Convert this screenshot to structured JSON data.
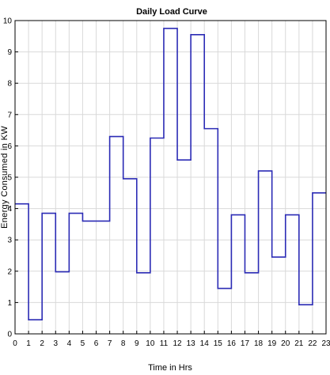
{
  "chart_data": {
    "type": "line",
    "step": "post",
    "title": "Daily Load Curve",
    "xlabel": "Time in Hrs",
    "ylabel": "Energy Consumed in KW",
    "xlim": [
      0,
      23
    ],
    "ylim": [
      0,
      10
    ],
    "xticks": [
      0,
      1,
      2,
      3,
      4,
      5,
      6,
      7,
      8,
      9,
      10,
      11,
      12,
      13,
      14,
      15,
      16,
      17,
      18,
      19,
      20,
      21,
      22,
      23
    ],
    "yticks": [
      0,
      1,
      2,
      3,
      4,
      5,
      6,
      7,
      8,
      9,
      10
    ],
    "grid": true,
    "series": [
      {
        "color": "#2b2bb5",
        "x": [
          0,
          1,
          2,
          3,
          4,
          5,
          6,
          7,
          8,
          9,
          10,
          11,
          12,
          13,
          14,
          15,
          16,
          17,
          18,
          19,
          20,
          21,
          22,
          23
        ],
        "values": [
          4.15,
          0.45,
          3.85,
          1.98,
          3.85,
          3.6,
          3.6,
          6.3,
          4.95,
          1.95,
          6.25,
          9.75,
          5.55,
          9.55,
          6.55,
          1.45,
          3.8,
          1.95,
          5.2,
          2.45,
          3.8,
          0.93,
          4.5,
          4.5
        ]
      }
    ]
  }
}
